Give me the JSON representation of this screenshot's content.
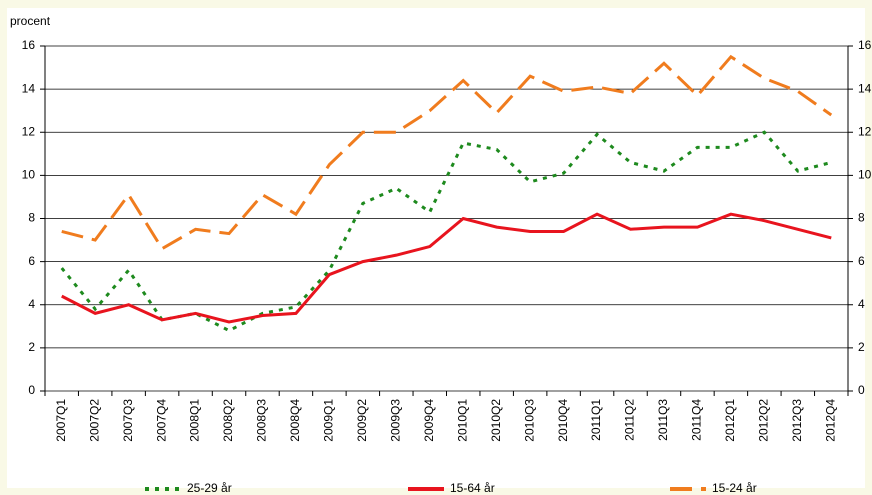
{
  "chart_data": {
    "type": "line",
    "y_label": "procent",
    "categories": [
      "2007Q1",
      "2007Q2",
      "2007Q3",
      "2007Q4",
      "2008Q1",
      "2008Q2",
      "2008Q3",
      "2008Q4",
      "2009Q1",
      "2009Q2",
      "2009Q3",
      "2009Q4",
      "2010Q1",
      "2010Q2",
      "2010Q3",
      "2010Q4",
      "2011Q1",
      "2011Q2",
      "2011Q3",
      "2011Q4",
      "2012Q1",
      "2012Q2",
      "2012Q3",
      "2012Q4"
    ],
    "series": [
      {
        "name": "25-29 år",
        "color": "#1e8a1e",
        "dash": "4,6",
        "values": [
          5.7,
          3.8,
          5.6,
          3.3,
          3.6,
          2.8,
          3.6,
          3.9,
          5.6,
          8.7,
          9.4,
          8.3,
          11.5,
          11.2,
          9.7,
          10.1,
          11.9,
          10.6,
          10.2,
          11.3,
          11.3,
          12.0,
          10.2,
          10.6
        ]
      },
      {
        "name": "15-64 år",
        "color": "#e8141e",
        "dash": "none",
        "values": [
          4.4,
          3.6,
          4.0,
          3.3,
          3.6,
          3.2,
          3.5,
          3.6,
          5.4,
          6.0,
          6.3,
          6.7,
          8.0,
          7.6,
          7.4,
          7.4,
          8.2,
          7.5,
          7.6,
          7.6,
          8.2,
          7.9,
          7.5,
          7.1
        ]
      },
      {
        "name": "15-24 år",
        "color": "#f07c1e",
        "dash": "22,9",
        "values": [
          7.4,
          7.0,
          9.1,
          6.6,
          7.5,
          7.3,
          9.1,
          8.2,
          10.5,
          12.0,
          12.0,
          13.0,
          14.4,
          12.9,
          14.6,
          13.9,
          14.1,
          13.8,
          15.2,
          13.7,
          15.5,
          14.5,
          13.9,
          12.8
        ]
      }
    ],
    "ylim": [
      0,
      16
    ],
    "yticks": [
      0,
      2,
      4,
      6,
      8,
      10,
      12,
      14,
      16
    ],
    "y2lim": [
      0,
      16
    ],
    "y2ticks": [
      0,
      2,
      4,
      6,
      8,
      10,
      12,
      14,
      16
    ],
    "grid": true,
    "legend": "bottom"
  }
}
